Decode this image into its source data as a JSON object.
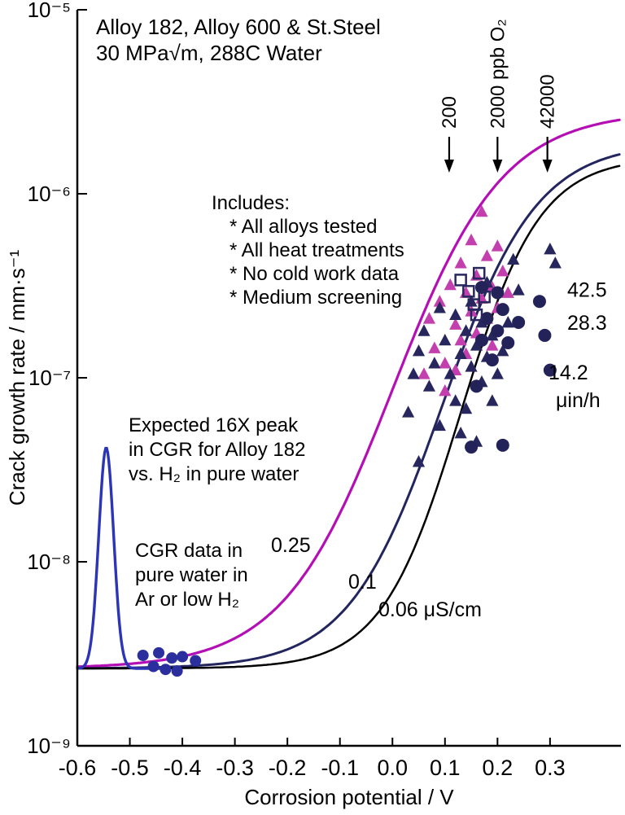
{
  "figure": {
    "title_lines": [
      "Alloy 182, Alloy 600 & St.Steel",
      "30 MPa√m, 288C Water"
    ],
    "includes_lines": [
      "Includes:",
      "* All alloys tested",
      "* All heat treatments",
      "* No cold work data",
      "* Medium screening"
    ],
    "peak_note_lines": [
      "Expected 16X peak",
      "in CGR for Alloy 182",
      "vs. H₂ in pure water"
    ],
    "pure_water_note_lines": [
      "CGR data in",
      "pure water in",
      "Ar or low H₂"
    ]
  },
  "chart_data": {
    "type": "scatter",
    "title": "Alloy 182, Alloy 600 & St.Steel — 30 MPa√m, 288C Water",
    "xlabel": "Corrosion potential / V",
    "ylabel": "Crack growth rate / mm·s⁻¹",
    "xlim": [
      -0.6,
      0.435
    ],
    "ylog_lim": [
      -9,
      -5
    ],
    "grid": false,
    "background": "#ffffff",
    "x_ticks": [
      -0.6,
      -0.5,
      -0.4,
      -0.3,
      -0.2,
      -0.1,
      0.0,
      0.1,
      0.2,
      0.3
    ],
    "x_tick_labels": [
      "-0.6",
      "-0.5",
      "-0.4",
      "-0.3",
      "-0.2",
      "-0.1",
      "0.0",
      "0.1",
      "0.2",
      "0.3"
    ],
    "y_ticks": [
      {
        "log": -9,
        "label": "10⁻⁹"
      },
      {
        "log": -8,
        "label": "10⁻⁸"
      },
      {
        "log": -7,
        "label": "10⁻⁷"
      },
      {
        "log": -6,
        "label": "10⁻⁶"
      },
      {
        "log": -5,
        "label": "10⁻⁵"
      }
    ],
    "oxygen_arrows": [
      {
        "label": "200",
        "x": 0.108
      },
      {
        "label": "2000 ppb O₂",
        "x": 0.2
      },
      {
        "label": "42000",
        "x": 0.295
      }
    ],
    "conductivity_curves": [
      {
        "label": "0.25",
        "unit": "μS/cm",
        "color": "#b40fb4",
        "width": 3.2,
        "base_log": -8.58,
        "top_log": -5.55,
        "x_mid": 0.0,
        "slope": 0.105
      },
      {
        "label": "0.1",
        "unit": "μS/cm",
        "color": "#23255f",
        "width": 3.0,
        "base_log": -8.58,
        "top_log": -5.72,
        "x_mid": 0.095,
        "slope": 0.09
      },
      {
        "label": "0.06 μS/cm",
        "unit": "μS/cm",
        "color": "#000000",
        "width": 2.5,
        "base_log": -8.58,
        "top_log": -5.8,
        "x_mid": 0.13,
        "slope": 0.075
      }
    ],
    "h2_peak": {
      "color": "#2b35b5",
      "width": 3.4,
      "center": -0.545,
      "sigma": 0.02,
      "height_log": 1.2,
      "base_log": -8.58,
      "x_start": -0.6,
      "x_end": -0.44
    },
    "series": [
      {
        "name": "pure-water-ar-low-h2-circles",
        "marker": "circle",
        "color": "#2b2f9e",
        "size": 7,
        "points": [
          [
            -0.475,
            3.1e-09
          ],
          [
            -0.455,
            2.7e-09
          ],
          [
            -0.445,
            3.2e-09
          ],
          [
            -0.432,
            2.6e-09
          ],
          [
            -0.42,
            3e-09
          ],
          [
            -0.41,
            2.55e-09
          ],
          [
            -0.4,
            3.05e-09
          ],
          [
            -0.375,
            2.9e-09
          ]
        ]
      },
      {
        "name": "magenta-triangles",
        "marker": "triangle",
        "color": "#c33fae",
        "size": 8,
        "points": [
          [
            0.07,
            2.1e-07
          ],
          [
            0.08,
            1.45e-07
          ],
          [
            0.09,
            2.6e-07
          ],
          [
            0.1,
            1.2e-07
          ],
          [
            0.1,
            8.5e-08
          ],
          [
            0.11,
            3.2e-07
          ],
          [
            0.12,
            1.95e-07
          ],
          [
            0.12,
            1.1e-07
          ],
          [
            0.13,
            4.2e-07
          ],
          [
            0.13,
            1.6e-07
          ],
          [
            0.14,
            2.9e-07
          ],
          [
            0.14,
            1.35e-07
          ],
          [
            0.15,
            5.6e-07
          ],
          [
            0.15,
            2.3e-07
          ],
          [
            0.16,
            3.6e-07
          ],
          [
            0.16,
            1.75e-07
          ],
          [
            0.17,
            8e-07
          ],
          [
            0.17,
            2.7e-07
          ],
          [
            0.18,
            4.6e-07
          ],
          [
            0.18,
            2.1e-07
          ],
          [
            0.19,
            3.1e-07
          ],
          [
            0.19,
            1.5e-07
          ],
          [
            0.2,
            5.2e-07
          ],
          [
            0.2,
            2.4e-07
          ],
          [
            0.21,
            3.8e-07
          ],
          [
            0.22,
            2.9e-07
          ],
          [
            0.06,
            1.05e-07
          ]
        ]
      },
      {
        "name": "navy-triangles",
        "marker": "triangle",
        "color": "#27275e",
        "size": 8,
        "points": [
          [
            0.03,
            6.5e-08
          ],
          [
            0.04,
            1.05e-07
          ],
          [
            0.05,
            1.4e-07
          ],
          [
            0.05,
            3.5e-08
          ],
          [
            0.06,
            1.8e-07
          ],
          [
            0.07,
            9e-08
          ],
          [
            0.08,
            1.2e-07
          ],
          [
            0.09,
            5.5e-08
          ],
          [
            0.09,
            2.4e-07
          ],
          [
            0.1,
            1.6e-07
          ],
          [
            0.11,
            1.05e-07
          ],
          [
            0.12,
            2.2e-07
          ],
          [
            0.12,
            7.5e-08
          ],
          [
            0.13,
            1.35e-07
          ],
          [
            0.13,
            5e-08
          ],
          [
            0.14,
            1.8e-07
          ],
          [
            0.14,
            6.8e-08
          ],
          [
            0.15,
            2.6e-07
          ],
          [
            0.15,
            1.15e-07
          ],
          [
            0.16,
            1.5e-07
          ],
          [
            0.16,
            4.5e-08
          ],
          [
            0.17,
            2e-07
          ],
          [
            0.17,
            9.5e-08
          ],
          [
            0.18,
            1.3e-07
          ],
          [
            0.18,
            3.3e-07
          ],
          [
            0.19,
            1.7e-07
          ],
          [
            0.19,
            7.5e-08
          ],
          [
            0.2,
            1.05e-07
          ],
          [
            0.21,
            1.4e-07
          ],
          [
            0.22,
            2e-07
          ],
          [
            0.23,
            4.4e-07
          ],
          [
            0.24,
            3e-07
          ],
          [
            0.3,
            5e-07
          ],
          [
            0.31,
            4.2e-07
          ]
        ]
      },
      {
        "name": "navy-circles",
        "marker": "circle",
        "color": "#23235a",
        "size": 8,
        "points": [
          [
            0.15,
            4.2e-08
          ],
          [
            0.16,
            9e-08
          ],
          [
            0.17,
            1.6e-07
          ],
          [
            0.17,
            3.1e-07
          ],
          [
            0.18,
            2.1e-07
          ],
          [
            0.19,
            1.25e-07
          ],
          [
            0.2,
            1.8e-07
          ],
          [
            0.2,
            2.9e-07
          ],
          [
            0.21,
            2.35e-07
          ],
          [
            0.21,
            4.3e-08
          ],
          [
            0.22,
            1.55e-07
          ],
          [
            0.24,
            2e-07
          ],
          [
            0.28,
            2.6e-07
          ],
          [
            0.29,
            1.7e-07
          ],
          [
            0.3,
            1.1e-07
          ]
        ]
      },
      {
        "name": "open-squares",
        "marker": "square-open",
        "color": "#27275e",
        "size": 6.5,
        "points": [
          [
            0.13,
            3.4e-07
          ],
          [
            0.145,
            2.95e-07
          ],
          [
            0.155,
            2.5e-07
          ],
          [
            0.165,
            3.7e-07
          ],
          [
            0.175,
            2.75e-07
          ],
          [
            0.16,
            2.2e-07
          ]
        ]
      }
    ],
    "rate_labels": [
      {
        "label": "42.5",
        "logy": -6.52
      },
      {
        "label": "28.3",
        "logy": -6.7
      },
      {
        "label": "14.2",
        "logy": -6.97
      },
      {
        "label": "μin/h",
        "logy": -7.12
      }
    ]
  }
}
